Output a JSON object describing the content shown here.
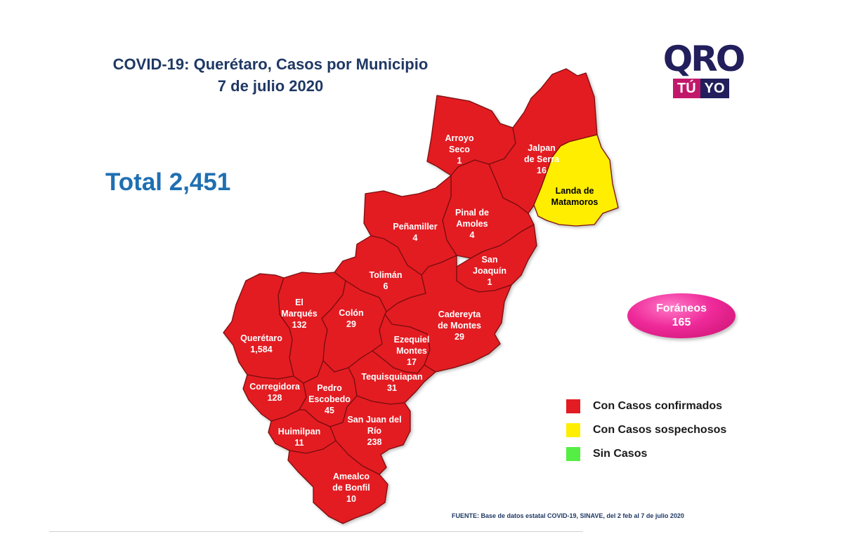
{
  "title": {
    "line1": "COVID-19: Querétaro, Casos por Municipio",
    "line2": "7 de julio 2020"
  },
  "total": "Total 2,451",
  "logo": {
    "main": "QRO",
    "left": "TÚ",
    "right": "YO"
  },
  "colors": {
    "confirmed": "#e31b23",
    "suspected": "#ffee00",
    "none": "#55ee44",
    "border": "#7a1010"
  },
  "municipalities": [
    {
      "id": "arroyo-seco",
      "name_lines": [
        "Arroyo",
        "Seco"
      ],
      "cases": "1",
      "status": "confirmed"
    },
    {
      "id": "jalpan-de-serra",
      "name_lines": [
        "Jalpan",
        "de Serra"
      ],
      "cases": "16",
      "status": "confirmed"
    },
    {
      "id": "landa-de-matamoros",
      "name_lines": [
        "Landa de",
        "Matamoros"
      ],
      "cases": "",
      "status": "suspected"
    },
    {
      "id": "pinal-de-amoles",
      "name_lines": [
        "Pinal de",
        "Amoles"
      ],
      "cases": "4",
      "status": "confirmed"
    },
    {
      "id": "penamiller",
      "name_lines": [
        "Peñamiller"
      ],
      "cases": "4",
      "status": "confirmed"
    },
    {
      "id": "san-joaquin",
      "name_lines": [
        "San",
        "Joaquín"
      ],
      "cases": "1",
      "status": "confirmed"
    },
    {
      "id": "toliman",
      "name_lines": [
        "Tolimán"
      ],
      "cases": "6",
      "status": "confirmed"
    },
    {
      "id": "cadereyta-de-montes",
      "name_lines": [
        "Cadereyta",
        "de Montes"
      ],
      "cases": "29",
      "status": "confirmed"
    },
    {
      "id": "el-marques",
      "name_lines": [
        "El",
        "Marqués"
      ],
      "cases": "132",
      "status": "confirmed"
    },
    {
      "id": "colon",
      "name_lines": [
        "Colón"
      ],
      "cases": "29",
      "status": "confirmed"
    },
    {
      "id": "queretaro",
      "name_lines": [
        "Querétaro"
      ],
      "cases": "1,584",
      "status": "confirmed"
    },
    {
      "id": "ezequiel-montes",
      "name_lines": [
        "Ezequiel",
        "Montes"
      ],
      "cases": "17",
      "status": "confirmed"
    },
    {
      "id": "tequisquiapan",
      "name_lines": [
        "Tequisquiapan"
      ],
      "cases": "31",
      "status": "confirmed"
    },
    {
      "id": "corregidora",
      "name_lines": [
        "Corregidora"
      ],
      "cases": "128",
      "status": "confirmed"
    },
    {
      "id": "pedro-escobedo",
      "name_lines": [
        "Pedro",
        "Escobedo"
      ],
      "cases": "45",
      "status": "confirmed"
    },
    {
      "id": "san-juan-del-rio",
      "name_lines": [
        "San Juan del",
        "Río"
      ],
      "cases": "238",
      "status": "confirmed"
    },
    {
      "id": "huimilpan",
      "name_lines": [
        "Huimilpan"
      ],
      "cases": "11",
      "status": "confirmed"
    },
    {
      "id": "amealco-de-bonfil",
      "name_lines": [
        "Amealco",
        "de Bonfil"
      ],
      "cases": "10",
      "status": "confirmed"
    }
  ],
  "foraneos": {
    "label": "Foráneos",
    "value": "165"
  },
  "legend": [
    {
      "label": "Con Casos confirmados",
      "color": "#e31b23"
    },
    {
      "label": "Con Casos sospechosos",
      "color": "#ffee00"
    },
    {
      "label": "Sin Casos",
      "color": "#55ee44"
    }
  ],
  "source": "FUENTE: Base de datos estatal COVID-19, SINAVE, del 2 feb al 7 de julio 2020"
}
